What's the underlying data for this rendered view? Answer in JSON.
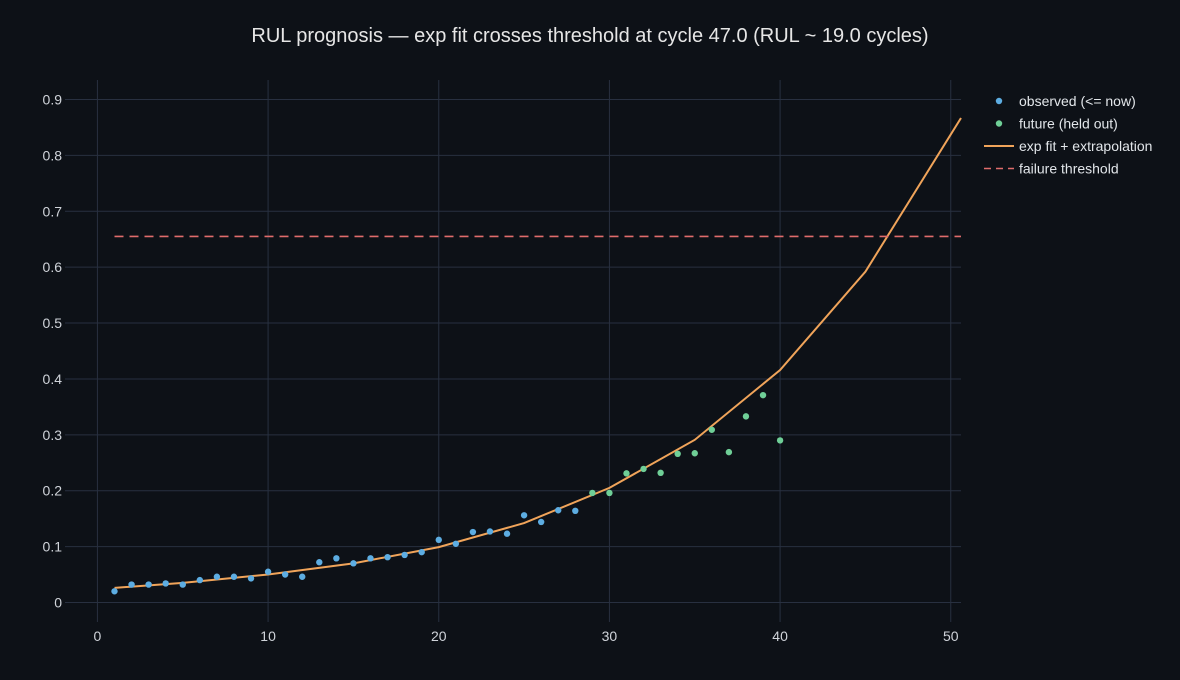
{
  "chart_data": {
    "type": "scatter",
    "title": "RUL prognosis — exp fit crosses threshold at cycle 47.0 (RUL ~ 19.0 cycles)",
    "xlabel": "",
    "ylabel": "",
    "xlim": [
      -1.9,
      50.6
    ],
    "ylim": [
      -0.035,
      0.935
    ],
    "x_ticks": [
      0,
      10,
      20,
      30,
      40,
      50
    ],
    "y_ticks": [
      0,
      0.1,
      0.2,
      0.3,
      0.4,
      0.5,
      0.6,
      0.7,
      0.8,
      0.9
    ],
    "y_tick_labels": [
      "0",
      "0.1",
      "0.2",
      "0.3",
      "0.4",
      "0.5",
      "0.6",
      "0.7",
      "0.8",
      "0.9"
    ],
    "grid": true,
    "legend_position": "top-right",
    "series": [
      {
        "name": "observed (<= now)",
        "kind": "markers",
        "color": "#5dade2",
        "x": [
          1,
          2,
          3,
          4,
          5,
          6,
          7,
          8,
          9,
          10,
          11,
          12,
          13,
          14,
          15,
          16,
          17,
          18,
          19,
          20,
          21,
          22,
          23,
          24,
          25,
          26,
          27,
          28
        ],
        "y": [
          0.02,
          0.032,
          0.032,
          0.034,
          0.032,
          0.04,
          0.046,
          0.046,
          0.043,
          0.055,
          0.05,
          0.046,
          0.072,
          0.079,
          0.07,
          0.079,
          0.081,
          0.085,
          0.09,
          0.112,
          0.105,
          0.126,
          0.127,
          0.123,
          0.156,
          0.144,
          0.165,
          0.164
        ]
      },
      {
        "name": "future (held out)",
        "kind": "markers",
        "color": "#6fcf97",
        "x": [
          29,
          30,
          31,
          32,
          33,
          34,
          35,
          36,
          37,
          38,
          39,
          40
        ],
        "y": [
          0.196,
          0.196,
          0.231,
          0.239,
          0.232,
          0.266,
          0.267,
          0.309,
          0.269,
          0.333,
          0.371,
          0.29
        ]
      },
      {
        "name": "exp fit + extrapolation",
        "kind": "line",
        "color": "#f0a45a",
        "x": [
          1,
          5,
          10,
          15,
          20,
          25,
          30,
          35,
          40,
          45,
          50.6
        ],
        "y": [
          0.026,
          0.035,
          0.05,
          0.07,
          0.099,
          0.142,
          0.205,
          0.291,
          0.416,
          0.592,
          0.867
        ]
      },
      {
        "name": "failure threshold",
        "kind": "dashed-line",
        "color": "#e06c6c",
        "x": [
          1,
          50.6
        ],
        "y": [
          0.655,
          0.655
        ]
      }
    ]
  }
}
